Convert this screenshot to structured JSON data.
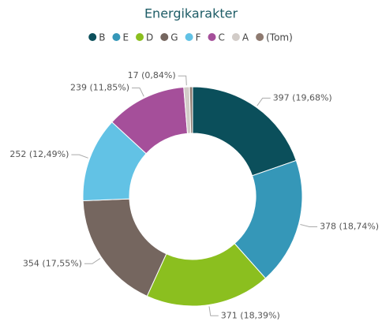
{
  "chart_data": {
    "type": "donut",
    "title": "Energikarakter",
    "categories": [
      "B",
      "E",
      "D",
      "G",
      "F",
      "C",
      "A",
      "(Tom)"
    ],
    "values": [
      397,
      378,
      371,
      354,
      252,
      239,
      17,
      9
    ],
    "value_labels": [
      "397 (19,68%)",
      "378 (18,74%)",
      "371 (18,39%)",
      "354 (17,55%)",
      "252 (12,49%)",
      "239 (11,85%)",
      "17 (0,84%)",
      null
    ],
    "colors": [
      "#0b4f5b",
      "#3597b8",
      "#8bbf1f",
      "#75665f",
      "#62c2e5",
      "#a54f9a",
      "#d2ccc8",
      "#8e7a70"
    ],
    "legend": "top"
  }
}
